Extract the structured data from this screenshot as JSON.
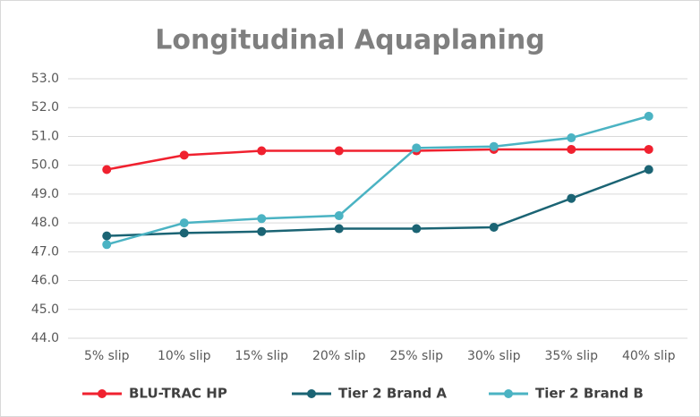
{
  "chart_data": {
    "type": "line",
    "title": "Longitudinal Aquaplaning",
    "categories": [
      "5% slip",
      "10% slip",
      "15% slip",
      "20% slip",
      "25% slip",
      "30% slip",
      "35% slip",
      "40% slip"
    ],
    "series": [
      {
        "name": "BLU-TRAC HP",
        "color": "#f0212f",
        "values": [
          49.85,
          50.35,
          50.5,
          50.5,
          50.5,
          50.55,
          50.55,
          50.55
        ]
      },
      {
        "name": "Tier 2 Brand A",
        "color": "#1b6474",
        "values": [
          47.55,
          47.65,
          47.7,
          47.8,
          47.8,
          47.85,
          48.85,
          49.85
        ]
      },
      {
        "name": "Tier 2 Brand B",
        "color": "#4bb3c3",
        "values": [
          47.25,
          48.0,
          48.15,
          48.25,
          50.6,
          50.65,
          50.95,
          51.7
        ]
      }
    ],
    "ylim": [
      44,
      53
    ],
    "yticks": [
      {
        "value": 44,
        "label": "44.0"
      },
      {
        "value": 45,
        "label": "45.0"
      },
      {
        "value": 46,
        "label": "46.0"
      },
      {
        "value": 47,
        "label": "47.0"
      },
      {
        "value": 48,
        "label": "48.0"
      },
      {
        "value": 49,
        "label": "49.0"
      },
      {
        "value": 50,
        "label": "50.0"
      },
      {
        "value": 51,
        "label": "51.0"
      },
      {
        "value": 52,
        "label": "52.0"
      },
      {
        "value": 53,
        "label": "53.0"
      }
    ],
    "grid": true,
    "legend": "bottom"
  }
}
